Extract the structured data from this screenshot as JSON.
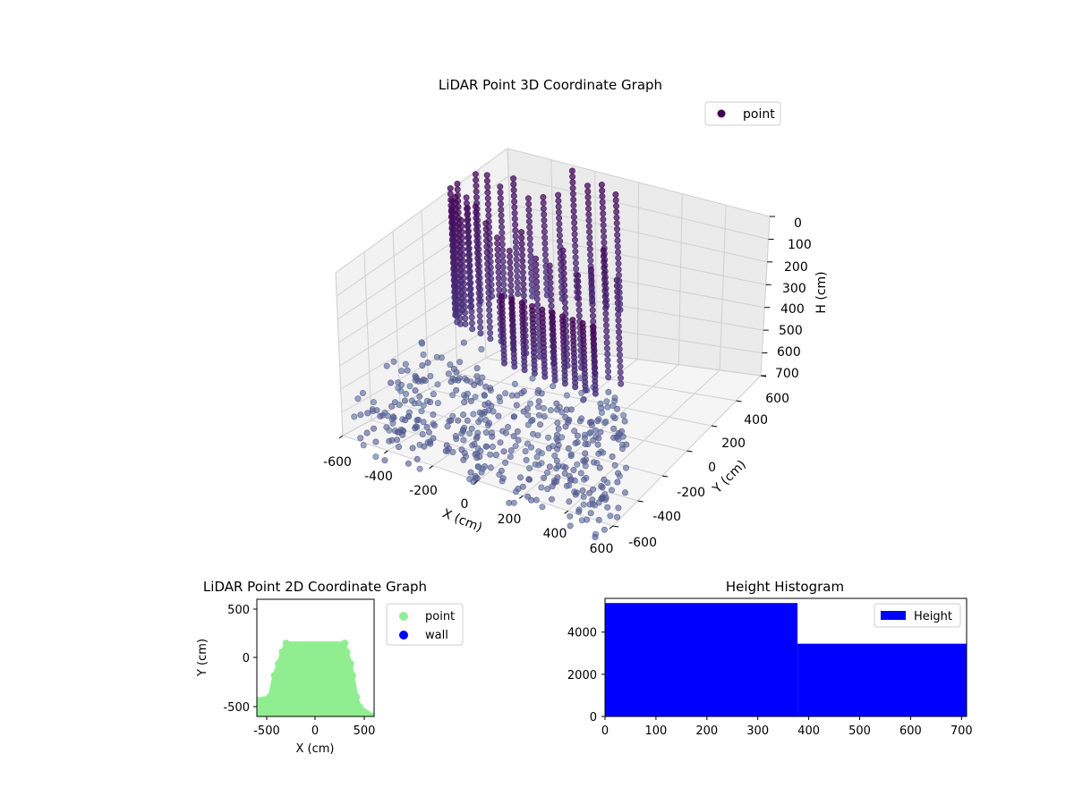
{
  "figure": {
    "background": "#ffffff"
  },
  "chart_data": [
    {
      "id": "lidar3d",
      "type": "scatter",
      "title": "LiDAR Point 3D Coordinate Graph",
      "xlabel": "X (cm)",
      "ylabel": "Y (cm)",
      "zlabel": "H (cm)",
      "xlim": [
        -600,
        600
      ],
      "ylim": [
        -600,
        600
      ],
      "zlim": [
        700,
        0
      ],
      "xticks": [
        "-600",
        "-400",
        "-200",
        "0",
        "200",
        "400",
        "600"
      ],
      "yticks": [
        "-600",
        "-400",
        "-200",
        "0",
        "200",
        "400",
        "600"
      ],
      "zticks": [
        "0",
        "100",
        "200",
        "300",
        "400",
        "500",
        "600",
        "700"
      ],
      "grid": true,
      "legend": {
        "position": "top-right",
        "entries": [
          {
            "label": "point",
            "color": "#440154"
          }
        ]
      },
      "colormap": {
        "low_height": "#46337e",
        "high_height": "#440154",
        "low_height_outer": "#5a6f9a"
      },
      "series": [
        {
          "name": "point",
          "shape": "dense ring-shaped wall point cloud above a sparse ground-level point cloud"
        }
      ]
    },
    {
      "id": "lidar2d",
      "type": "scatter",
      "title": "LiDAR Point 2D Coordinate Graph",
      "xlabel": "X (cm)",
      "ylabel": "Y (cm)",
      "xlim": [
        -600,
        600
      ],
      "ylim": [
        -600,
        600
      ],
      "xticks": [
        "-500",
        "0",
        "500"
      ],
      "yticks": [
        "-500",
        "0",
        "500"
      ],
      "legend": {
        "position": "outside-right",
        "entries": [
          {
            "label": "point",
            "color": "#90ee90"
          },
          {
            "label": "wall",
            "color": "#0000ff"
          }
        ]
      },
      "series": [
        {
          "name": "point",
          "color": "#90ee90",
          "outline": [
            [
              -600,
              -430
            ],
            [
              -470,
              -400
            ],
            [
              -420,
              -180
            ],
            [
              -380,
              -60
            ],
            [
              -340,
              60
            ],
            [
              -300,
              150
            ],
            [
              300,
              150
            ],
            [
              320,
              60
            ],
            [
              360,
              -60
            ],
            [
              380,
              -180
            ],
            [
              420,
              -400
            ],
            [
              450,
              -500
            ],
            [
              600,
              -600
            ],
            [
              -600,
              -600
            ]
          ]
        },
        {
          "name": "wall",
          "color": "#0000ff",
          "points": []
        }
      ]
    },
    {
      "id": "hist",
      "type": "bar",
      "title": "Height Histogram",
      "xlim": [
        0,
        710
      ],
      "ylim": [
        0,
        5600
      ],
      "xticks": [
        "0",
        "100",
        "200",
        "300",
        "400",
        "500",
        "600",
        "700"
      ],
      "yticks": [
        "0",
        "2000",
        "4000"
      ],
      "legend": {
        "position": "top-right",
        "entries": [
          {
            "label": "Height",
            "color": "#0000ff"
          }
        ]
      },
      "bins": [
        {
          "x0": 0,
          "x1": 378,
          "count": 5380
        },
        {
          "x0": 378,
          "x1": 710,
          "count": 3450
        }
      ],
      "series": [
        {
          "name": "Height",
          "color": "#0000ff"
        }
      ]
    }
  ]
}
